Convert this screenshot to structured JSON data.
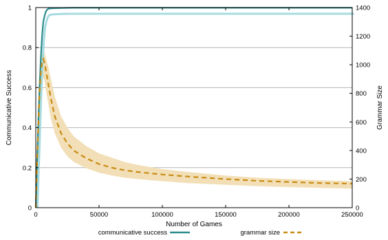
{
  "chart_data": {
    "type": "line",
    "title": "",
    "xlabel": "Number of Games",
    "ylabel_left": "Communicative Success",
    "ylabel_right": "Grammar Size",
    "xlim": [
      0,
      250000
    ],
    "ylim_left": [
      0,
      1
    ],
    "ylim_right": [
      0,
      1400
    ],
    "x_ticks": [
      "0",
      "50000",
      "100000",
      "150000",
      "200000",
      "250000"
    ],
    "y_left_ticks": [
      "0",
      "0.2",
      "0.4",
      "0.6",
      "0.8",
      "1"
    ],
    "y_right_ticks": [
      "0",
      "200",
      "400",
      "600",
      "800",
      "1000",
      "1200",
      "1400"
    ],
    "grid": "horizontal",
    "legend_position": "bottom",
    "colors": {
      "communicative_success": "#2a8a8a",
      "grammar_size": "#c98a10",
      "grammar_band": "#f2dfb7"
    },
    "series": [
      {
        "name": "communicative success",
        "axis": "left",
        "style": "solid",
        "x": [
          0,
          1000,
          2000,
          3000,
          4000,
          5000,
          6000,
          7000,
          8000,
          9000,
          10000,
          12000,
          15000,
          20000,
          30000,
          50000,
          100000,
          150000,
          200000,
          250000
        ],
        "y": [
          0,
          0.22,
          0.42,
          0.6,
          0.75,
          0.86,
          0.93,
          0.96,
          0.98,
          0.99,
          0.994,
          0.996,
          0.997,
          0.998,
          0.999,
          0.999,
          0.999,
          0.999,
          0.999,
          0.999
        ]
      },
      {
        "name": "grammar size",
        "axis": "right",
        "style": "dashed",
        "x": [
          0,
          1000,
          2000,
          3000,
          4000,
          5000,
          6000,
          7000,
          8000,
          10000,
          12000,
          15000,
          20000,
          25000,
          30000,
          40000,
          50000,
          60000,
          70000,
          80000,
          100000,
          120000,
          150000,
          175000,
          200000,
          225000,
          250000
        ],
        "y": [
          0,
          300,
          560,
          800,
          950,
          1020,
          1040,
          1010,
          960,
          860,
          760,
          640,
          520,
          450,
          400,
          345,
          305,
          280,
          262,
          250,
          232,
          218,
          200,
          188,
          180,
          172,
          168
        ],
        "band_upper": [
          0,
          340,
          640,
          880,
          1030,
          1080,
          1090,
          1080,
          1050,
          980,
          900,
          780,
          640,
          560,
          500,
          430,
          380,
          350,
          320,
          300,
          270,
          250,
          225,
          210,
          200,
          192,
          185
        ],
        "band_lower": [
          0,
          260,
          480,
          700,
          850,
          900,
          910,
          880,
          820,
          720,
          620,
          520,
          420,
          360,
          320,
          275,
          245,
          225,
          210,
          200,
          185,
          172,
          160,
          150,
          144,
          138,
          133
        ]
      }
    ]
  }
}
